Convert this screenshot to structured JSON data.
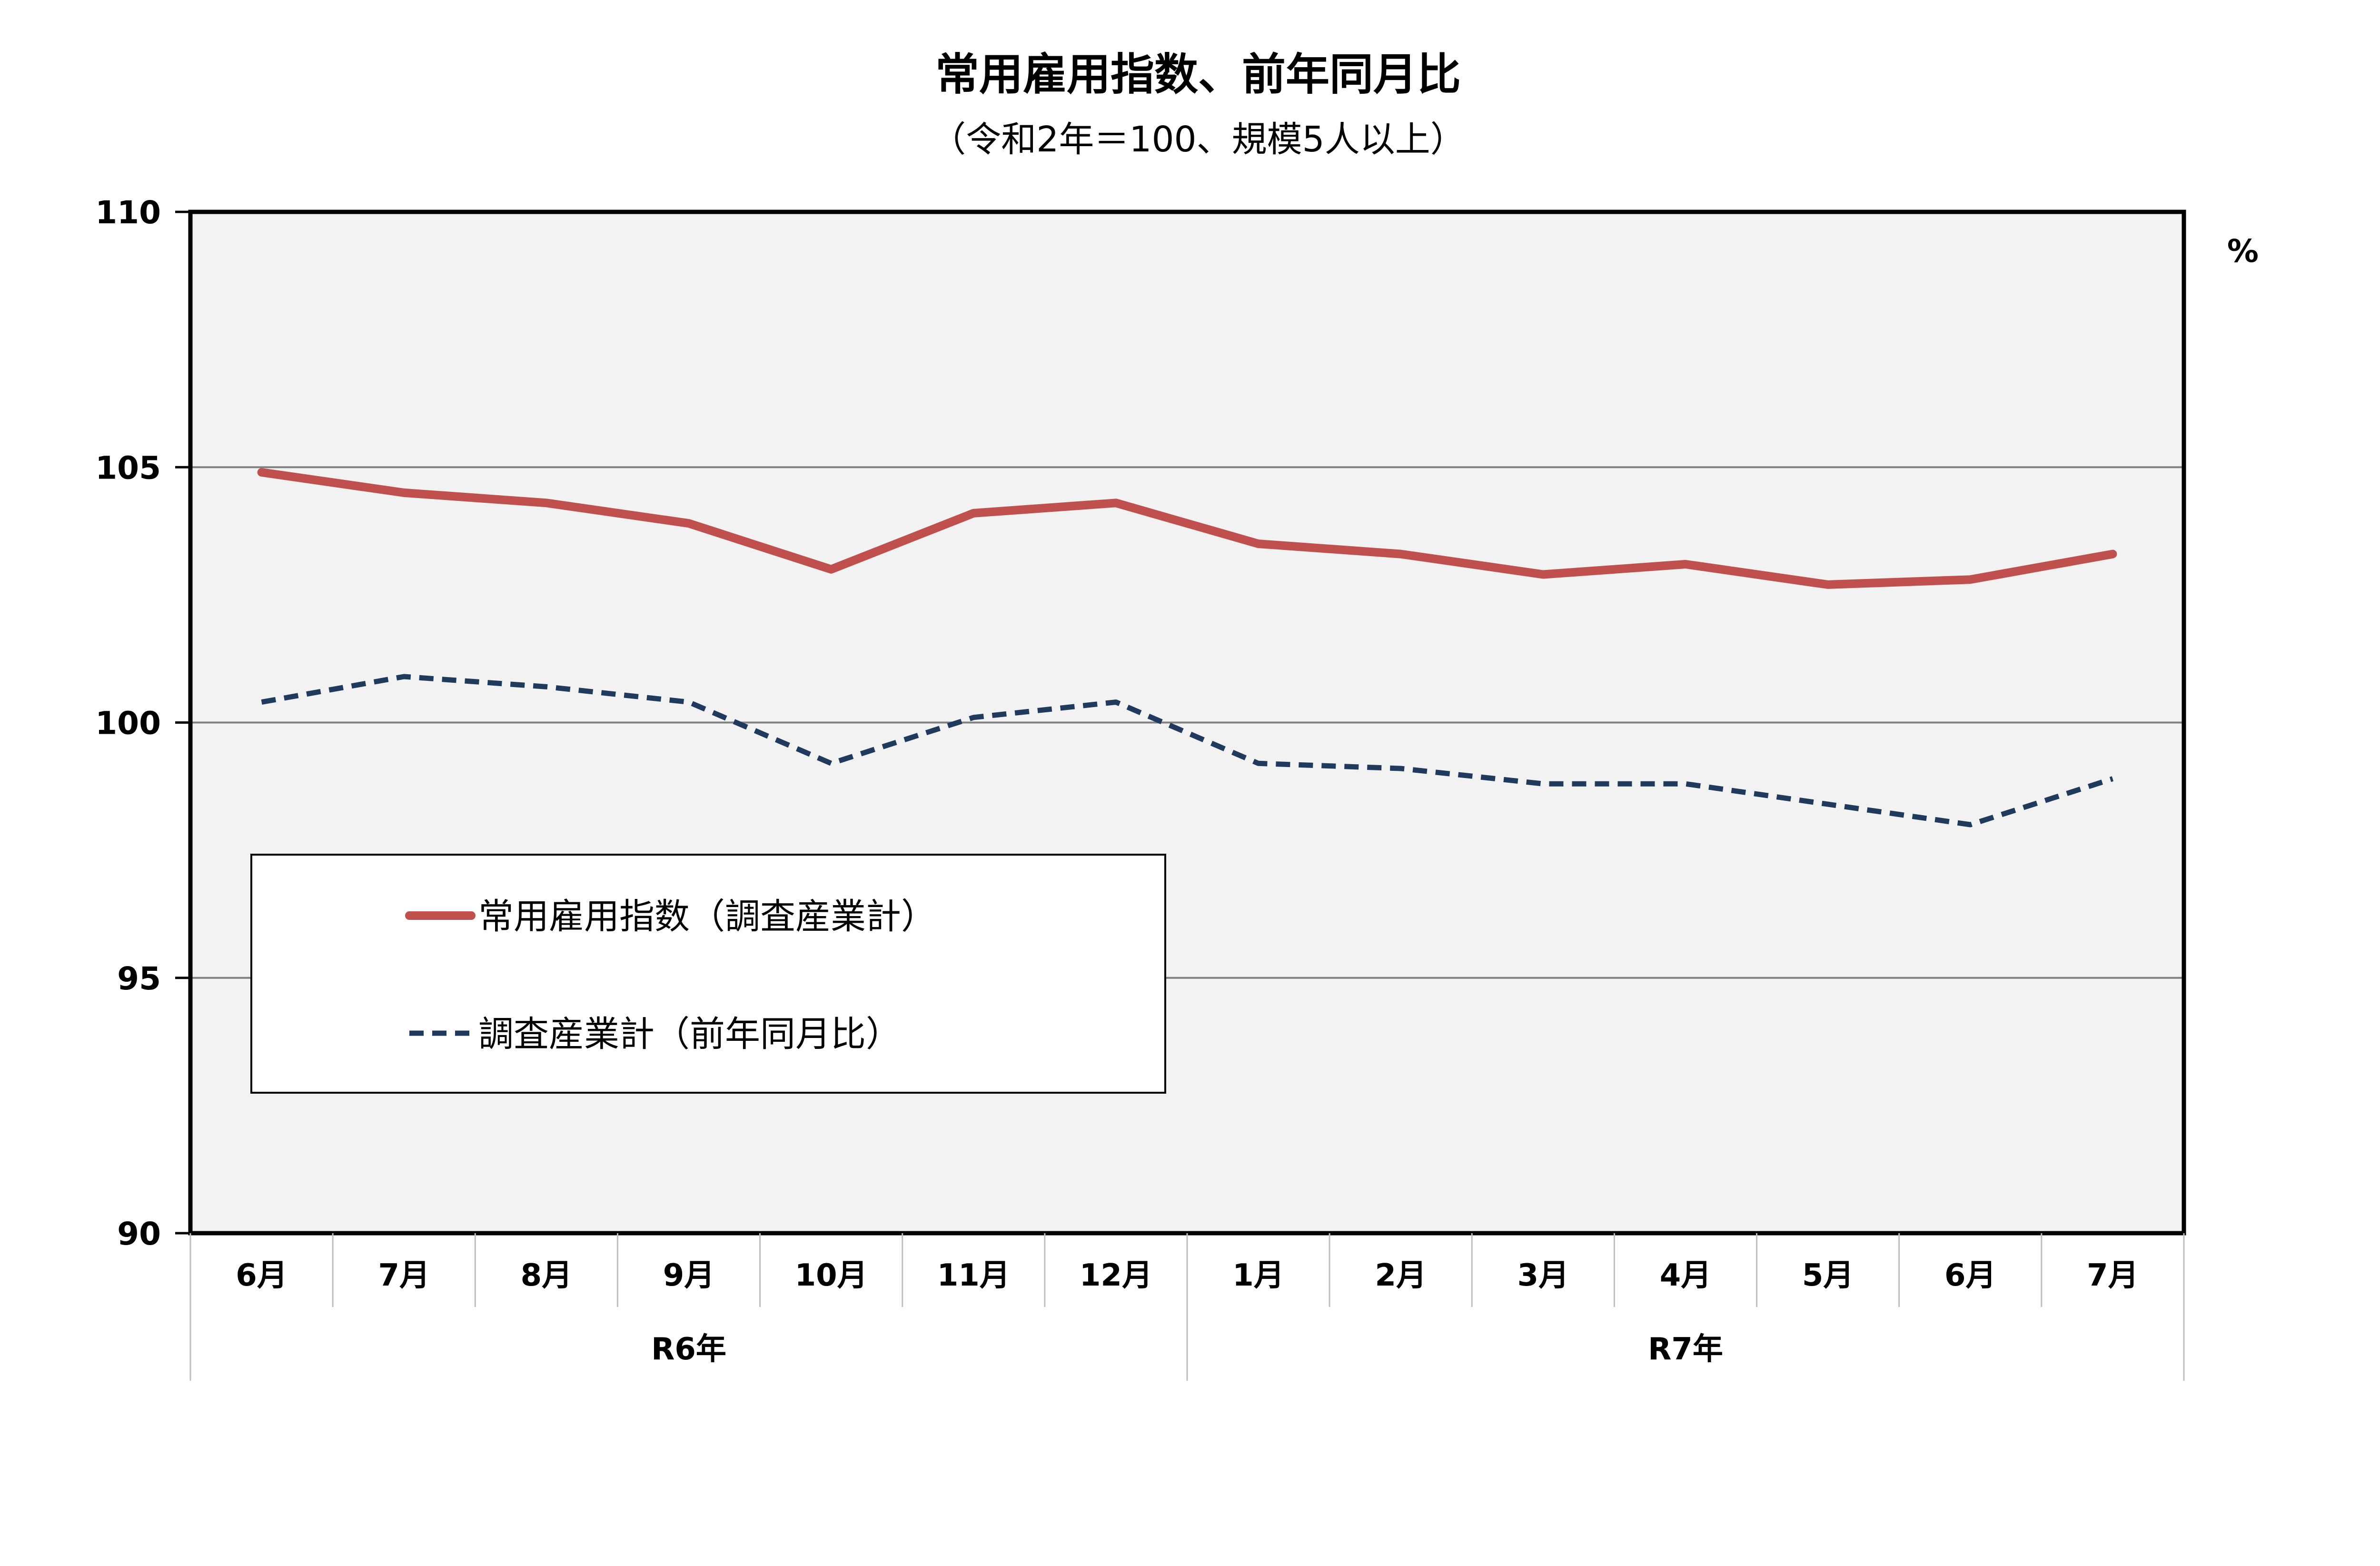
{
  "chart_data": {
    "type": "line",
    "title": "常用雇用指数、前年同月比",
    "subtitle": "（令和2年＝100、規模5人以上）",
    "categories": [
      "6月",
      "7月",
      "8月",
      "9月",
      "10月",
      "11月",
      "12月",
      "1月",
      "2月",
      "3月",
      "4月",
      "5月",
      "6月",
      "7月"
    ],
    "groups": [
      {
        "label": "R6年",
        "start": 0,
        "end": 6
      },
      {
        "label": "R7年",
        "start": 7,
        "end": 13
      }
    ],
    "ylim": [
      90,
      110
    ],
    "yticks": [
      90,
      95,
      100,
      105,
      110
    ],
    "right_axis_unit": "%",
    "grid": true,
    "legend_position": "lower-left",
    "series": [
      {
        "name": "常用雇用指数（調査産業計）",
        "style": "solid",
        "color": "#c0504d",
        "values": [
          104.9,
          104.5,
          104.3,
          103.9,
          103.0,
          104.1,
          104.3,
          103.5,
          103.3,
          102.9,
          103.1,
          102.7,
          102.8,
          103.3
        ]
      },
      {
        "name": "調査産業計（前年同月比）",
        "style": "dashed",
        "color": "#1f3a5c",
        "values": [
          100.4,
          100.9,
          100.7,
          100.4,
          99.2,
          100.1,
          100.4,
          99.2,
          99.1,
          98.8,
          98.8,
          98.4,
          98.0,
          98.9
        ]
      }
    ]
  }
}
